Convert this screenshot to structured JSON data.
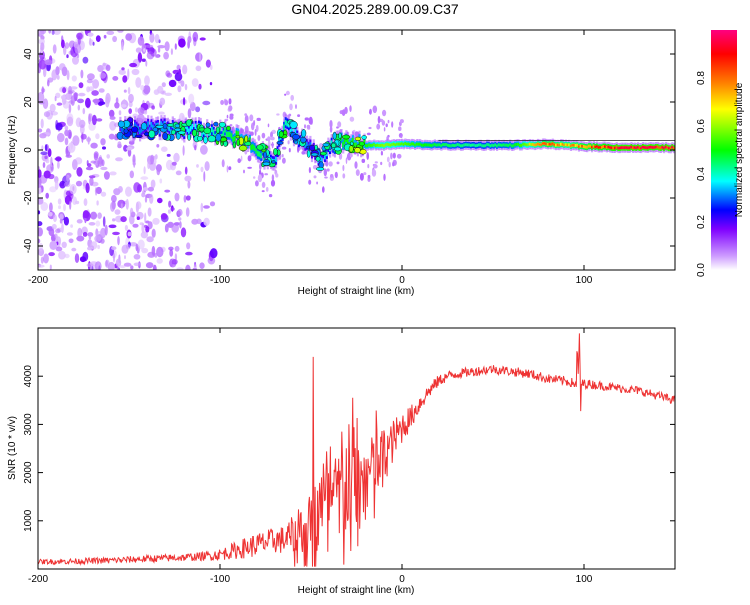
{
  "title": "GN04.2025.289.00.09.C37",
  "chart_data": [
    {
      "type": "heatmap",
      "name": "spectrogram",
      "xlabel": "Height of straight line (km)",
      "ylabel": "Frequency (Hz)",
      "xlim": [
        -200,
        150
      ],
      "ylim": [
        -50,
        50
      ],
      "x_ticks": [
        -200,
        -100,
        0,
        100
      ],
      "x_tick_labels": [
        "-200",
        "-100",
        "0",
        "100"
      ],
      "y_ticks": [
        -40,
        -20,
        0,
        20,
        40
      ],
      "y_tick_labels": [
        "-40",
        "-20",
        "0",
        "20",
        "40"
      ],
      "colorbar": {
        "label": "Normalized spectral amplitude",
        "range": [
          0,
          1
        ],
        "ticks": [
          0.0,
          0.2,
          0.4,
          0.6,
          0.8
        ],
        "tick_labels": [
          "0.0",
          "0.2",
          "0.4",
          "0.6",
          "0.8"
        ],
        "colors": [
          "#ffffff",
          "#cc99ff",
          "#7f00ff",
          "#0000ff",
          "#00ffff",
          "#00ff00",
          "#ffff00",
          "#ff7f00",
          "#ff0000",
          "#ff0080"
        ]
      },
      "ridge": {
        "x": [
          -150,
          -130,
          -110,
          -100,
          -95,
          -90,
          -85,
          -80,
          -75,
          -70,
          -65,
          -62,
          -55,
          -50,
          -45,
          -40,
          -35,
          -30,
          -20,
          -10,
          0,
          20,
          40,
          60,
          80,
          90,
          100,
          120,
          150
        ],
        "frequency": [
          9,
          9,
          8,
          7,
          6,
          5,
          3,
          0,
          -3,
          -5,
          10,
          9,
          4,
          0,
          -4,
          2,
          3,
          3,
          2,
          2,
          2.5,
          2,
          2,
          2,
          2.5,
          2,
          1.5,
          1,
          1
        ],
        "amplitude": [
          0.35,
          0.4,
          0.45,
          0.5,
          0.55,
          0.6,
          0.6,
          0.55,
          0.5,
          0.4,
          0.5,
          0.45,
          0.4,
          0.35,
          0.4,
          0.45,
          0.55,
          0.6,
          0.6,
          0.7,
          0.65,
          0.55,
          0.5,
          0.55,
          0.85,
          0.75,
          0.85,
          0.95,
          0.95
        ]
      },
      "noise_region_x": [
        -200,
        -100
      ]
    },
    {
      "type": "line",
      "name": "snr",
      "xlabel": "Height of straight line (km)",
      "ylabel": "SNR (10 * v/v)",
      "xlim": [
        -200,
        150
      ],
      "ylim": [
        0,
        5000
      ],
      "x_ticks": [
        -200,
        -100,
        0,
        100
      ],
      "x_tick_labels": [
        "-200",
        "-100",
        "0",
        "100"
      ],
      "y_ticks": [
        1000,
        2000,
        3000,
        4000
      ],
      "y_tick_labels": [
        "1000",
        "2000",
        "3000",
        "4000"
      ],
      "series": [
        {
          "name": "SNR",
          "color": "#ee3333",
          "x": [
            -200,
            -180,
            -160,
            -140,
            -120,
            -110,
            -100,
            -95,
            -90,
            -85,
            -80,
            -75,
            -70,
            -65,
            -60,
            -55,
            -50,
            -45,
            -40,
            -35,
            -30,
            -25,
            -20,
            -15,
            -10,
            -5,
            0,
            5,
            10,
            15,
            20,
            25,
            30,
            40,
            50,
            60,
            70,
            80,
            90,
            95,
            97,
            100,
            110,
            120,
            130,
            140,
            150
          ],
          "values": [
            150,
            160,
            180,
            210,
            240,
            260,
            300,
            350,
            400,
            450,
            500,
            550,
            600,
            600,
            700,
            800,
            950,
            1150,
            1350,
            1500,
            1650,
            1800,
            1900,
            2100,
            2350,
            2650,
            2950,
            3150,
            3450,
            3700,
            3900,
            4000,
            4050,
            4100,
            4150,
            4100,
            4050,
            3950,
            3900,
            3850,
            3800,
            3850,
            3800,
            3750,
            3700,
            3600,
            3500
          ],
          "spread": [
            100,
            120,
            130,
            150,
            160,
            180,
            250,
            300,
            380,
            450,
            500,
            500,
            550,
            600,
            800,
            1000,
            1300,
            1500,
            1800,
            1900,
            2000,
            1800,
            1600,
            1400,
            1200,
            900,
            700,
            500,
            400,
            300,
            250,
            220,
            200,
            200,
            200,
            200,
            200,
            200,
            200,
            200,
            200,
            200,
            180,
            180,
            180,
            180,
            180
          ]
        }
      ]
    }
  ]
}
